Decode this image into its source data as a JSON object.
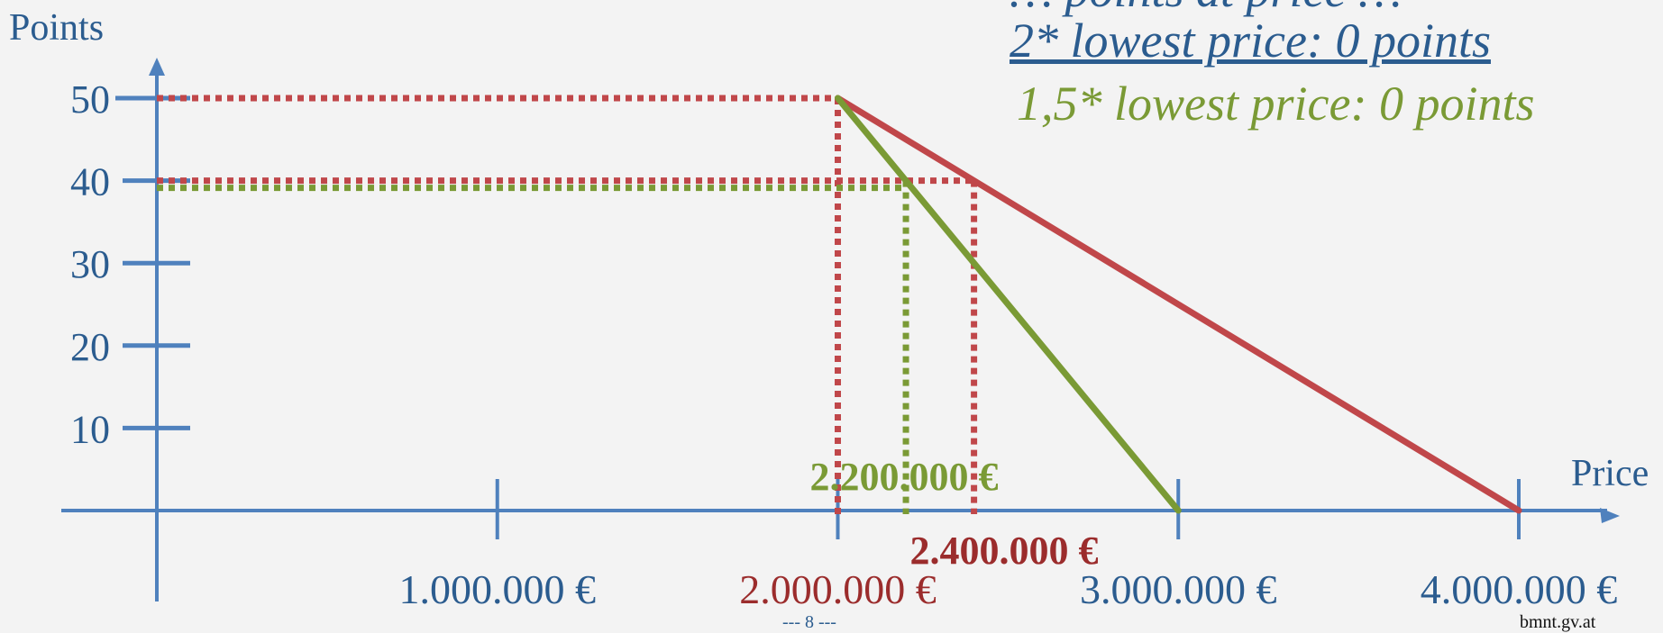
{
  "chart_data": {
    "type": "line",
    "xlabel": "Price",
    "ylabel": "Points",
    "xlim": [
      -500000,
      4300000
    ],
    "ylim": [
      0,
      52
    ],
    "x_ticks": [
      {
        "value": 1000000,
        "label": "1.000.000 €"
      },
      {
        "value": 2000000,
        "label": "2.000.000 €"
      },
      {
        "value": 3000000,
        "label": "3.000.000 €"
      },
      {
        "value": 4000000,
        "label": "4.000.000 €"
      }
    ],
    "y_ticks": [
      {
        "value": 10,
        "label": "10"
      },
      {
        "value": 20,
        "label": "20"
      },
      {
        "value": 30,
        "label": "30"
      },
      {
        "value": 40,
        "label": "40"
      },
      {
        "value": 50,
        "label": "50"
      }
    ],
    "series": [
      {
        "name": "2* lowest price: 0 points",
        "color": "#c0474a",
        "x": [
          2000000,
          4000000
        ],
        "y": [
          50,
          0
        ]
      },
      {
        "name": "1,5* lowest price: 0 points",
        "color": "#7a9a35",
        "x": [
          2000000,
          3000000
        ],
        "y": [
          50,
          0
        ]
      }
    ],
    "reference_lines": [
      {
        "color": "#c0474a",
        "x": 2000000,
        "y": 50
      },
      {
        "color": "#c0474a",
        "x": 2400000,
        "y": 40
      },
      {
        "color": "#7a9a35",
        "x": 2200000,
        "y": 40
      }
    ],
    "annotations": [
      {
        "text": "2.200.000 €",
        "color": "#7a9a35"
      },
      {
        "text": "2.400.000 €",
        "color": "#9b2c2c"
      }
    ],
    "tick_label_highlight": {
      "value": 2000000,
      "color": "#9b2c2c"
    },
    "grid": false,
    "colors": {
      "axis": "#4f81bd",
      "axis_text": "#2b5c8f"
    }
  },
  "legend": {
    "top_partial": "… points at price …",
    "line_a": "2* lowest price: 0 points",
    "line_b": "1,5* lowest price: 0 points"
  },
  "footer": {
    "page_number": "---    8    ---",
    "source": "bmnt.gv.at"
  }
}
